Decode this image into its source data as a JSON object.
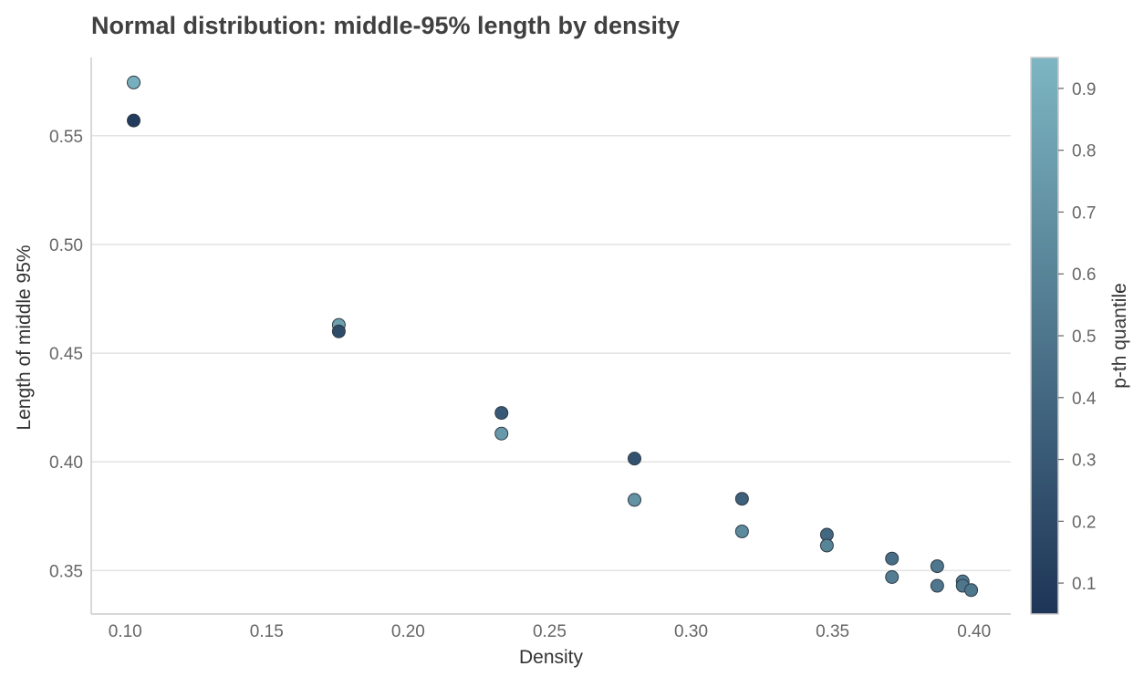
{
  "chart_data": {
    "type": "scatter",
    "title": "Normal distribution: middle-95% length by density",
    "xlabel": "Density",
    "ylabel": "Length of middle 95%",
    "xlim": [
      0.088,
      0.413
    ],
    "ylim": [
      0.33,
      0.586
    ],
    "x_ticks": [
      0.1,
      0.15,
      0.2,
      0.25,
      0.3,
      0.35,
      0.4
    ],
    "x_tick_labels": [
      "0.10",
      "0.15",
      "0.20",
      "0.25",
      "0.30",
      "0.35",
      "0.40"
    ],
    "y_ticks": [
      0.35,
      0.4,
      0.45,
      0.5,
      0.55
    ],
    "y_tick_labels": [
      "0.35",
      "0.40",
      "0.45",
      "0.50",
      "0.55"
    ],
    "grid": "horizontal",
    "colorbar": {
      "label": "p-th quantile",
      "range": [
        0.05,
        0.95
      ],
      "ticks": [
        0.1,
        0.2,
        0.3,
        0.4,
        0.5,
        0.6,
        0.7,
        0.8,
        0.9
      ],
      "tick_labels": [
        "0.1",
        "0.2",
        "0.3",
        "0.4",
        "0.5",
        "0.6",
        "0.7",
        "0.8",
        "0.9"
      ],
      "color_low": "#1e3557",
      "color_high": "#7db6c2"
    },
    "points": [
      {
        "x": 0.103,
        "y": 0.5745,
        "p": 0.9
      },
      {
        "x": 0.103,
        "y": 0.557,
        "p": 0.1
      },
      {
        "x": 0.1755,
        "y": 0.463,
        "p": 0.8
      },
      {
        "x": 0.1755,
        "y": 0.46,
        "p": 0.2
      },
      {
        "x": 0.233,
        "y": 0.4225,
        "p": 0.3
      },
      {
        "x": 0.233,
        "y": 0.413,
        "p": 0.75
      },
      {
        "x": 0.28,
        "y": 0.4015,
        "p": 0.25
      },
      {
        "x": 0.28,
        "y": 0.3825,
        "p": 0.7
      },
      {
        "x": 0.318,
        "y": 0.383,
        "p": 0.35
      },
      {
        "x": 0.318,
        "y": 0.368,
        "p": 0.65
      },
      {
        "x": 0.348,
        "y": 0.3665,
        "p": 0.4
      },
      {
        "x": 0.348,
        "y": 0.3615,
        "p": 0.6
      },
      {
        "x": 0.371,
        "y": 0.3555,
        "p": 0.45
      },
      {
        "x": 0.371,
        "y": 0.347,
        "p": 0.55
      },
      {
        "x": 0.387,
        "y": 0.352,
        "p": 0.5
      },
      {
        "x": 0.387,
        "y": 0.343,
        "p": 0.5
      },
      {
        "x": 0.396,
        "y": 0.345,
        "p": 0.52
      },
      {
        "x": 0.396,
        "y": 0.343,
        "p": 0.5
      },
      {
        "x": 0.399,
        "y": 0.341,
        "p": 0.5
      }
    ]
  }
}
